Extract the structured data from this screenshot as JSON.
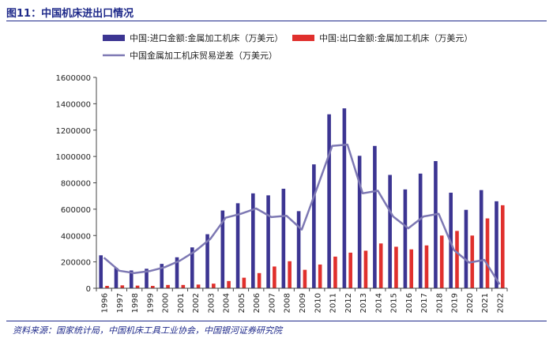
{
  "figure_title": "图11：中国机床进出口情况",
  "source_note": "资料来源：国家统计局，中国机床工具工业协会，中国银河证券研究院",
  "colors": {
    "import": "#3c3592",
    "export": "#e0302d",
    "trade": "#7d78b3",
    "accent": "#1f2a8a"
  },
  "chart_data": {
    "type": "bar",
    "title": "",
    "xlabel": "",
    "ylabel": "",
    "ylim": [
      0,
      1600000
    ],
    "yticks": [
      0,
      200000,
      400000,
      600000,
      800000,
      1000000,
      1200000,
      1400000,
      1600000
    ],
    "categories": [
      "1996",
      "1997",
      "1998",
      "1999",
      "2000",
      "2001",
      "2002",
      "2003",
      "2004",
      "2005",
      "2006",
      "2007",
      "2008",
      "2009",
      "2010",
      "2011",
      "2012",
      "2013",
      "2014",
      "2015",
      "2016",
      "2017",
      "2018",
      "2019",
      "2020",
      "2021",
      "2022"
    ],
    "series": [
      {
        "name": "中国:进口金额:金属加工机床（万美元）",
        "kind": "bar",
        "values": [
          250000,
          155000,
          135000,
          148000,
          185000,
          235000,
          310000,
          410000,
          590000,
          645000,
          720000,
          705000,
          755000,
          585000,
          940000,
          1320000,
          1365000,
          1005000,
          1080000,
          860000,
          750000,
          870000,
          965000,
          725000,
          595000,
          745000,
          660000
        ]
      },
      {
        "name": "中国:出口金额:金属加工机床（万美元）",
        "kind": "bar",
        "values": [
          18000,
          22000,
          20000,
          18000,
          25000,
          25000,
          28000,
          35000,
          55000,
          80000,
          115000,
          165000,
          205000,
          140000,
          180000,
          240000,
          270000,
          285000,
          340000,
          315000,
          295000,
          325000,
          400000,
          435000,
          400000,
          530000,
          630000
        ]
      },
      {
        "name": "中国金属加工机床贸易逆差（万美元）",
        "kind": "line",
        "values": [
          232000,
          133000,
          115000,
          130000,
          160000,
          210000,
          282000,
          375000,
          535000,
          565000,
          605000,
          540000,
          550000,
          445000,
          760000,
          1080000,
          1090000,
          720000,
          740000,
          545000,
          455000,
          545000,
          565000,
          290000,
          195000,
          215000,
          30000
        ]
      }
    ]
  }
}
